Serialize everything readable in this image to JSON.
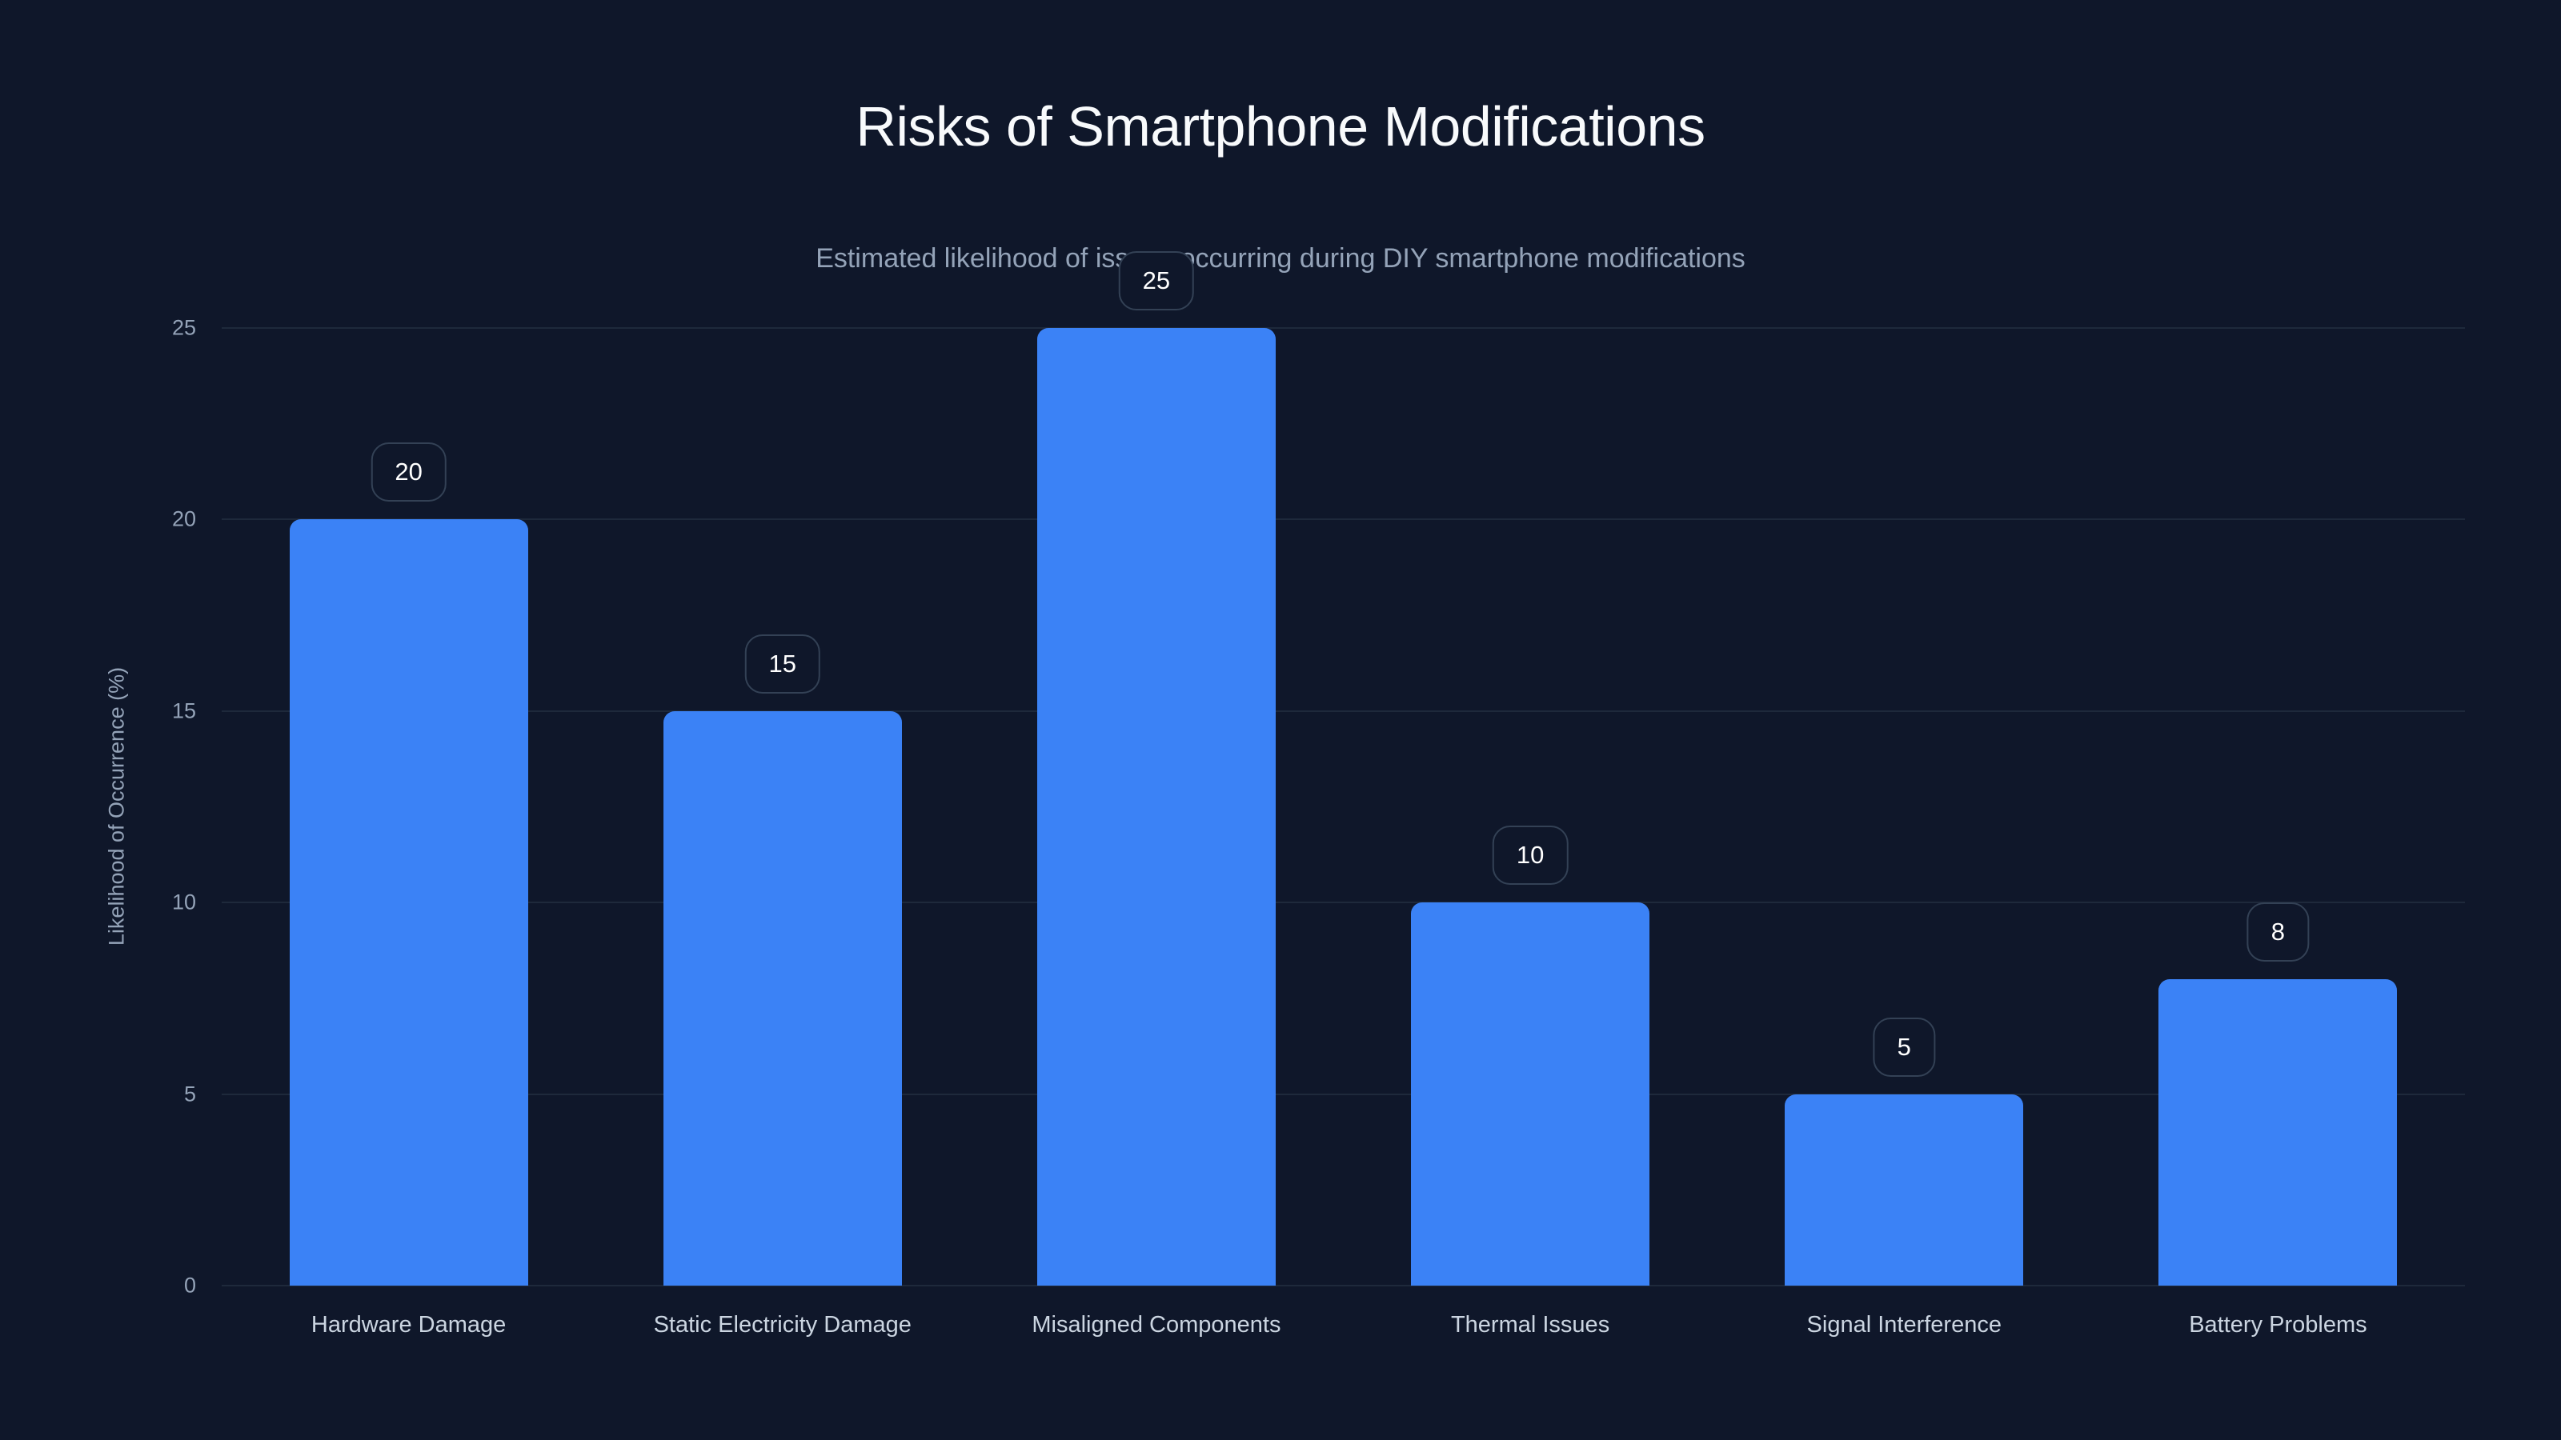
{
  "chart": {
    "title": "Risks of Smartphone Modifications",
    "subtitle": "Estimated likelihood of issues occurring during DIY smartphone modifications",
    "ylabel": "Likelihood of Occurrence (%)",
    "yticks": [
      "0",
      "5",
      "10",
      "15",
      "20",
      "25"
    ],
    "labels": [
      "20",
      "15",
      "25",
      "10",
      "5",
      "8"
    ],
    "categories": [
      "Hardware Damage",
      "Static Electricity Damage",
      "Misaligned Components",
      "Thermal Issues",
      "Signal Interference",
      "Battery Problems"
    ]
  },
  "colors": {
    "bar": "#3b82f6",
    "background": "#0f172a",
    "grid": "#1e293b",
    "badge_border": "#334155"
  },
  "chart_data": {
    "type": "bar",
    "title": "Risks of Smartphone Modifications",
    "subtitle": "Estimated likelihood of issues occurring during DIY smartphone modifications",
    "categories": [
      "Hardware Damage",
      "Static Electricity Damage",
      "Misaligned Components",
      "Thermal Issues",
      "Signal Interference",
      "Battery Problems"
    ],
    "values": [
      20,
      15,
      25,
      10,
      5,
      8
    ],
    "xlabel": "",
    "ylabel": "Likelihood of Occurrence (%)",
    "ylim": [
      0,
      25
    ],
    "yticks": [
      0,
      5,
      10,
      15,
      20,
      25
    ],
    "grid": true,
    "legend": null,
    "data_labels": true
  }
}
